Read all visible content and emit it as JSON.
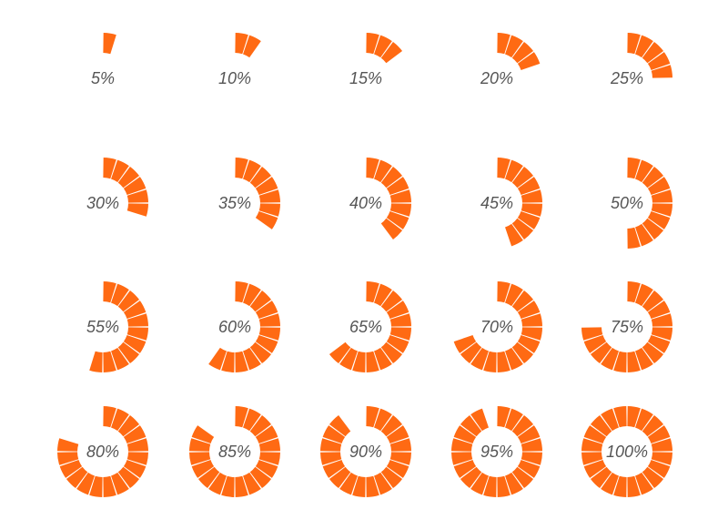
{
  "style": {
    "segment_color": "#ff6a13",
    "segment_stroke": "#ffffff",
    "label_color": "#555555",
    "segments_per_ring": 20
  },
  "gauges": [
    {
      "label": "5%",
      "value": 5
    },
    {
      "label": "10%",
      "value": 10
    },
    {
      "label": "15%",
      "value": 15
    },
    {
      "label": "20%",
      "value": 20
    },
    {
      "label": "25%",
      "value": 25
    },
    {
      "label": "30%",
      "value": 30
    },
    {
      "label": "35%",
      "value": 35
    },
    {
      "label": "40%",
      "value": 40
    },
    {
      "label": "45%",
      "value": 45
    },
    {
      "label": "50%",
      "value": 50
    },
    {
      "label": "55%",
      "value": 55
    },
    {
      "label": "60%",
      "value": 60
    },
    {
      "label": "65%",
      "value": 65
    },
    {
      "label": "70%",
      "value": 70
    },
    {
      "label": "75%",
      "value": 75
    },
    {
      "label": "80%",
      "value": 80
    },
    {
      "label": "85%",
      "value": 85
    },
    {
      "label": "90%",
      "value": 90
    },
    {
      "label": "95%",
      "value": 95
    },
    {
      "label": "100%",
      "value": 100
    }
  ]
}
